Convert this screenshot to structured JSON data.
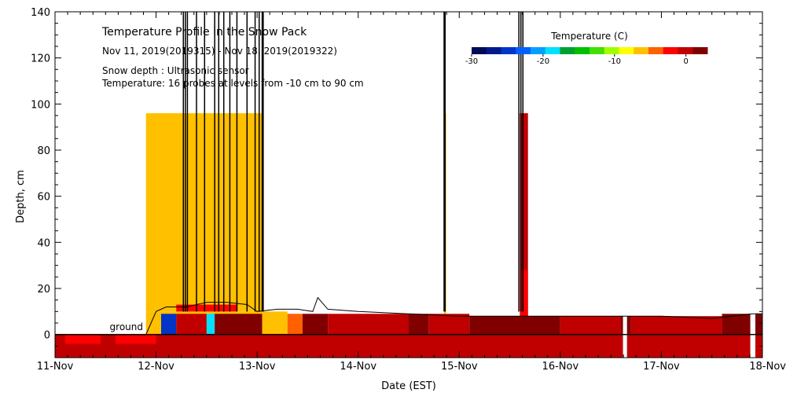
{
  "chart_data": {
    "type": "heatmap",
    "title": "Temperature Profile in the Snow Pack",
    "date_range": "Nov 11, 2019(2019315) - Nov 18, 2019(2019322)",
    "annotation_sensor": "Snow depth : Ultrasonic sensor",
    "annotation_probes": "Temperature: 16 probes at levels from -10 cm to 90 cm",
    "ground_label": "ground",
    "xlabel": "Date (EST)",
    "ylabel": "Depth, cm",
    "x_ticks": [
      "11-Nov",
      "12-Nov",
      "13-Nov",
      "14-Nov",
      "15-Nov",
      "16-Nov",
      "17-Nov",
      "18-Nov"
    ],
    "xlim": [
      11,
      18
    ],
    "ylim": [
      -10,
      140
    ],
    "y_ticks": [
      0,
      20,
      40,
      60,
      80,
      100,
      120,
      140
    ],
    "colorbar": {
      "title": "Temperature (C)",
      "range": [
        -30,
        3
      ],
      "ticks": [
        -30,
        -20,
        -10,
        0
      ],
      "colors": [
        "#000a5a",
        "#001a8c",
        "#0035c8",
        "#0060ff",
        "#00a0ff",
        "#00e0ff",
        "#00a030",
        "#00c000",
        "#40e000",
        "#a0ff00",
        "#ffff00",
        "#ffc000",
        "#ff6000",
        "#ff0000",
        "#c00000",
        "#800000"
      ]
    },
    "snow_depth": {
      "x": [
        11.0,
        11.9,
        12.0,
        12.1,
        12.3,
        12.5,
        12.7,
        12.9,
        13.0,
        13.2,
        13.4,
        13.55,
        13.6,
        13.7,
        14.0,
        14.5,
        15.0,
        15.5,
        15.7,
        16.0,
        16.5,
        17.0,
        17.5,
        17.9,
        18.0
      ],
      "y": [
        0,
        0,
        10,
        12,
        12,
        14,
        14,
        13,
        10,
        11,
        11,
        10,
        16,
        11,
        10,
        9,
        8,
        8,
        8,
        8,
        8,
        8,
        7,
        9,
        9
      ]
    },
    "spikes_x": [
      12.27,
      12.29,
      12.31,
      12.4,
      12.48,
      12.58,
      12.62,
      12.67,
      12.73,
      12.8,
      12.9,
      12.98,
      13.02,
      13.05,
      13.06,
      14.85,
      14.86,
      15.59,
      15.61,
      15.63
    ],
    "temperature_cells": [
      {
        "x0": 11.0,
        "x1": 18.0,
        "y0": -10,
        "y1": 0,
        "t": -0.5
      },
      {
        "x0": 11.1,
        "x1": 11.45,
        "y0": -4,
        "y1": 0,
        "t": -2.5
      },
      {
        "x0": 11.6,
        "x1": 12.0,
        "y0": -4,
        "y1": 0,
        "t": -2.5
      },
      {
        "x0": 16.6,
        "x1": 18.0,
        "y0": -6,
        "y1": 0,
        "t": 0.8
      },
      {
        "x0": 11.9,
        "x1": 13.05,
        "y0": 10,
        "y1": 96,
        "t": -7
      },
      {
        "x0": 11.9,
        "x1": 13.05,
        "y0": 0,
        "y1": 10,
        "t": -6
      },
      {
        "x0": 12.2,
        "x1": 12.8,
        "y0": 10,
        "y1": 13,
        "t": -3
      },
      {
        "x0": 12.05,
        "x1": 12.2,
        "y0": 0,
        "y1": 9,
        "t": -25
      },
      {
        "x0": 12.2,
        "x1": 12.5,
        "y0": 0,
        "y1": 9,
        "t": -0.5
      },
      {
        "x0": 12.5,
        "x1": 12.58,
        "y0": 0,
        "y1": 9,
        "t": -18
      },
      {
        "x0": 12.58,
        "x1": 13.05,
        "y0": 0,
        "y1": 9,
        "t": 1.5
      },
      {
        "x0": 13.05,
        "x1": 13.3,
        "y0": 0,
        "y1": 10,
        "t": -6
      },
      {
        "x0": 13.3,
        "x1": 13.45,
        "y0": 0,
        "y1": 9,
        "t": -5
      },
      {
        "x0": 13.45,
        "x1": 13.7,
        "y0": 0,
        "y1": 9,
        "t": 1.5
      },
      {
        "x0": 13.7,
        "x1": 14.5,
        "y0": 0,
        "y1": 9,
        "t": -0.5
      },
      {
        "x0": 14.5,
        "x1": 14.7,
        "y0": 0,
        "y1": 9,
        "t": 1.5
      },
      {
        "x0": 14.7,
        "x1": 15.1,
        "y0": 0,
        "y1": 9,
        "t": -0.5
      },
      {
        "x0": 15.1,
        "x1": 16.0,
        "y0": 0,
        "y1": 8,
        "t": 1.5
      },
      {
        "x0": 16.0,
        "x1": 16.6,
        "y0": 0,
        "y1": 8,
        "t": -0.5
      },
      {
        "x0": 16.6,
        "x1": 16.7,
        "y0": 0,
        "y1": 8,
        "t": 1.5
      },
      {
        "x0": 16.7,
        "x1": 17.6,
        "y0": 0,
        "y1": 8,
        "t": -0.5
      },
      {
        "x0": 17.6,
        "x1": 18.0,
        "y0": 0,
        "y1": 9,
        "t": 1.5
      },
      {
        "x0": 14.85,
        "x1": 14.87,
        "y0": 9,
        "y1": 96,
        "t": -7
      },
      {
        "x0": 15.6,
        "x1": 15.68,
        "y0": 8,
        "y1": 96,
        "t": 0
      },
      {
        "x0": 15.6,
        "x1": 15.68,
        "y0": 8,
        "y1": 28,
        "t": -3
      }
    ],
    "gaps": [
      {
        "x0": 16.62,
        "x1": 16.66
      },
      {
        "x0": 17.88,
        "x1": 17.93
      }
    ]
  }
}
